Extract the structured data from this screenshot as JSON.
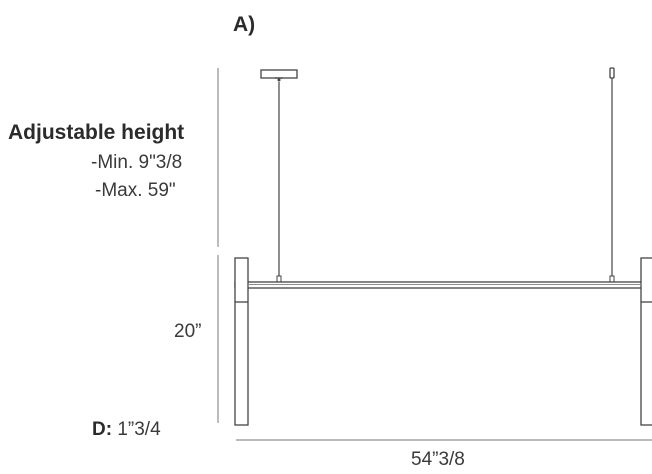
{
  "view_label": "A)",
  "adjustable_height": {
    "title": "Adjustable height",
    "min": "-Min. 9\"3/8",
    "max": "-Max. 59\""
  },
  "dimensions": {
    "height": "20”",
    "depth_label": "D:",
    "depth_value": "1”3/4",
    "width": "54”3/8"
  },
  "colors": {
    "line": "#555555",
    "text": "#333333"
  }
}
